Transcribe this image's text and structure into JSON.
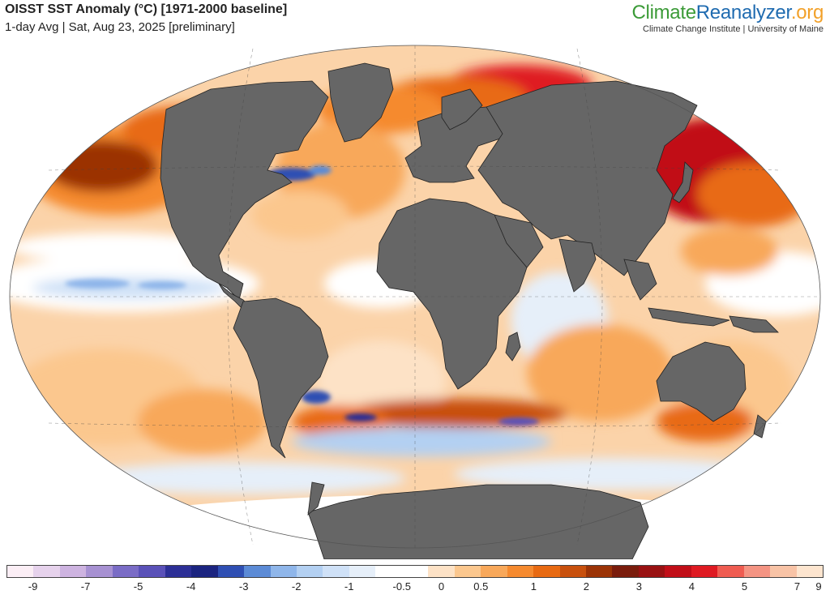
{
  "header": {
    "title": "OISST SST Anomaly (°C) [1971-2000 baseline]",
    "subtitle": "1-day Avg | Sat, Aug 23, 2025 [preliminary]"
  },
  "brand": {
    "part1": "Climate",
    "part2": "Reanalyzer",
    "part3": ".org",
    "subtitle": "Climate Change Institute | University of Maine",
    "colors": {
      "part1": "#3c9b38",
      "part2": "#1f6bb0",
      "part3": "#f2a12a"
    }
  },
  "map": {
    "projection": "Robinson",
    "land_color": "#666666",
    "border_color": "#222222",
    "ice_color": "#ffffff",
    "graticule": "dashed"
  },
  "legend": {
    "unit": "°C",
    "colors": [
      "#fbeef5",
      "#e6d2ec",
      "#cdb3e0",
      "#a791d2",
      "#7a6cc6",
      "#5a51b8",
      "#2c2f96",
      "#1b2480",
      "#2f4fb3",
      "#5c8bd6",
      "#8fb6ea",
      "#b3d0f2",
      "#cfe1f7",
      "#e6eff9",
      "#ffffff",
      "#ffffff",
      "#fde2c6",
      "#fbc78e",
      "#f8a85a",
      "#f58a2f",
      "#e86a12",
      "#c8500d",
      "#9b3306",
      "#7a1c0c",
      "#991112",
      "#c10e18",
      "#df1a22",
      "#ef5c51",
      "#f49483",
      "#f8c3a6",
      "#fde5cf"
    ],
    "labels": [
      "-9",
      "-7",
      "-5",
      "-4",
      "-3",
      "-2",
      "-1",
      "-0.5",
      "0",
      "0.5",
      "1",
      "2",
      "3",
      "4",
      "5",
      "7",
      "9"
    ]
  }
}
